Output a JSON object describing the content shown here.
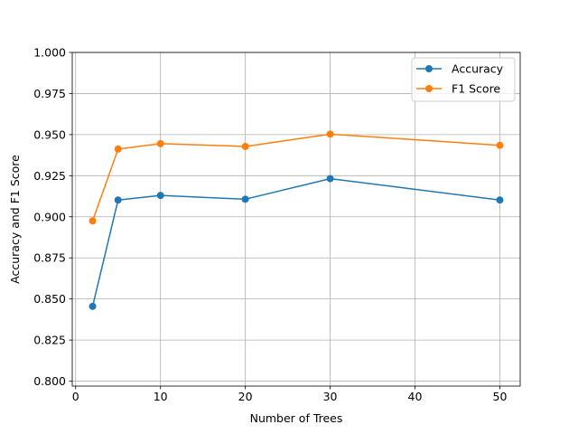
{
  "chart_data": {
    "type": "line",
    "title": "",
    "xlabel": "Number of Trees",
    "ylabel": "Accuracy and F1 Score",
    "xlim": [
      -0.4,
      52.4
    ],
    "ylim": [
      0.797,
      1.0
    ],
    "xticks": [
      0,
      10,
      20,
      30,
      40,
      50
    ],
    "xtick_labels": [
      "0",
      "10",
      "20",
      "30",
      "40",
      "50"
    ],
    "yticks": [
      0.8,
      0.825,
      0.85,
      0.875,
      0.9,
      0.925,
      0.95,
      0.975,
      1.0
    ],
    "ytick_labels": [
      "0.800",
      "0.825",
      "0.850",
      "0.875",
      "0.900",
      "0.925",
      "0.950",
      "0.975",
      "1.000"
    ],
    "grid": true,
    "legend_position": "top-right",
    "x": [
      2,
      5,
      10,
      20,
      30,
      50
    ],
    "series": [
      {
        "name": "Accuracy",
        "color": "#1f77b4",
        "marker": "circle",
        "values": [
          0.8455,
          0.9102,
          0.913,
          0.9107,
          0.9232,
          0.9102
        ]
      },
      {
        "name": "F1 Score",
        "color": "#ff7f0e",
        "marker": "circle",
        "values": [
          0.8975,
          0.9412,
          0.9445,
          0.9428,
          0.9503,
          0.9435
        ]
      }
    ]
  }
}
